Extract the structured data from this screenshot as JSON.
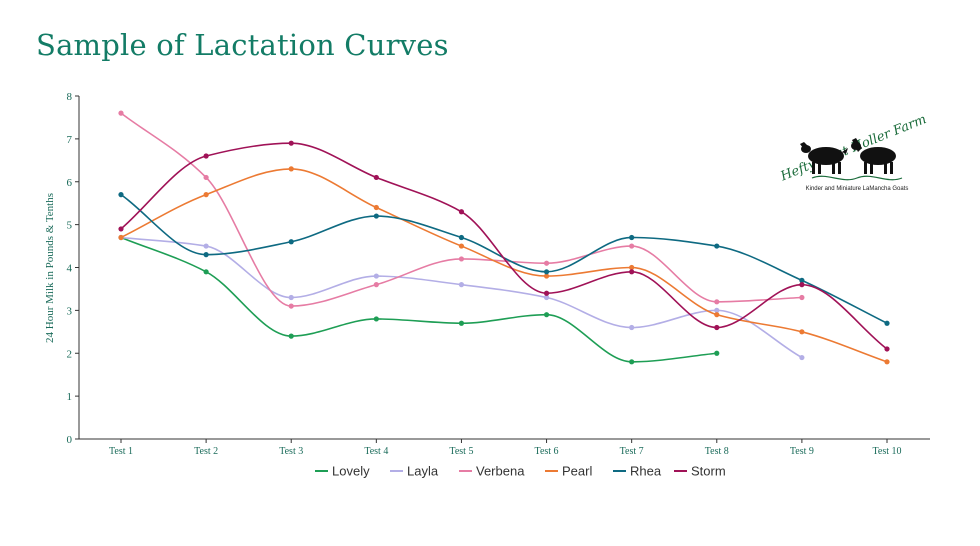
{
  "title": "Sample of Lactation Curves",
  "logo": {
    "name": "Hefty Goat Holler Farm",
    "tagline": "Kinder and Miniature LaMancha Goats"
  },
  "chart_data": {
    "type": "line",
    "title": "Sample of Lactation Curves",
    "xlabel": "",
    "ylabel": "24 Hour Milk in Pounds & Tenths",
    "ylim": [
      0,
      8
    ],
    "yticks": [
      0,
      1,
      2,
      3,
      4,
      5,
      6,
      7,
      8
    ],
    "categories": [
      "Test 1",
      "Test 2",
      "Test 3",
      "Test 4",
      "Test 5",
      "Test 6",
      "Test 7",
      "Test 8",
      "Test 9",
      "Test 10"
    ],
    "legend_position": "bottom",
    "grid": false,
    "series": [
      {
        "name": "Lovely",
        "color": "#1e9e55",
        "values": [
          4.7,
          3.9,
          2.4,
          2.8,
          2.7,
          2.9,
          1.8,
          2.0,
          null,
          null
        ]
      },
      {
        "name": "Layla",
        "color": "#b3aee6",
        "values": [
          4.7,
          4.5,
          3.3,
          3.8,
          3.6,
          3.3,
          2.6,
          3.0,
          1.9,
          null
        ]
      },
      {
        "name": "Verbena",
        "color": "#e67ca4",
        "values": [
          7.6,
          6.1,
          3.1,
          3.6,
          4.2,
          4.1,
          4.5,
          3.2,
          3.3,
          null
        ]
      },
      {
        "name": "Pearl",
        "color": "#ec7a33",
        "values": [
          4.7,
          5.7,
          6.3,
          5.4,
          4.5,
          3.8,
          4.0,
          2.9,
          2.5,
          1.8
        ]
      },
      {
        "name": "Rhea",
        "color": "#0e6a82",
        "values": [
          5.7,
          4.3,
          4.6,
          5.2,
          4.7,
          3.9,
          4.7,
          4.5,
          3.7,
          2.7
        ]
      },
      {
        "name": "Storm",
        "color": "#a01257",
        "values": [
          4.9,
          6.6,
          6.9,
          6.1,
          5.3,
          3.4,
          3.9,
          2.6,
          3.6,
          2.1
        ]
      }
    ]
  }
}
